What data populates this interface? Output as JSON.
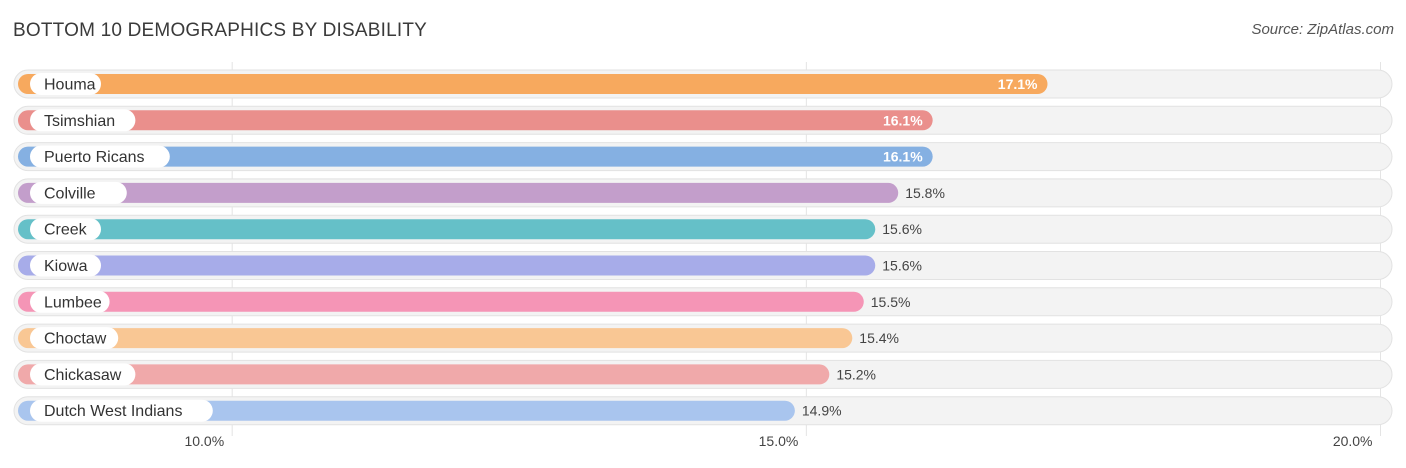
{
  "header": {
    "title": "BOTTOM 10 DEMOGRAPHICS BY DISABILITY",
    "source": "Source: ZipAtlas.com"
  },
  "chart_data": {
    "type": "bar",
    "orientation": "horizontal",
    "title": "BOTTOM 10 DEMOGRAPHICS BY DISABILITY",
    "categories": [
      "Houma",
      "Tsimshian",
      "Puerto Ricans",
      "Colville",
      "Creek",
      "Kiowa",
      "Lumbee",
      "Choctaw",
      "Chickasaw",
      "Dutch West Indians"
    ],
    "values": [
      17.1,
      16.1,
      16.1,
      15.8,
      15.6,
      15.6,
      15.5,
      15.4,
      15.2,
      14.9
    ],
    "value_labels": [
      "17.1%",
      "16.1%",
      "16.1%",
      "15.8%",
      "15.6%",
      "15.6%",
      "15.5%",
      "15.4%",
      "15.2%",
      "14.9%"
    ],
    "colors": [
      "#f7a95e",
      "#ea8f8c",
      "#85b0e2",
      "#c39ecb",
      "#65c0c8",
      "#a7ace9",
      "#f595b6",
      "#f9c794",
      "#f0a9aa",
      "#a9c5ee"
    ],
    "xlim": [
      8.1,
      20.1
    ],
    "xticks": [
      10.0,
      15.0,
      20.0
    ],
    "xtick_labels": [
      "10.0%",
      "15.0%",
      "20.0%"
    ],
    "grid": true
  }
}
